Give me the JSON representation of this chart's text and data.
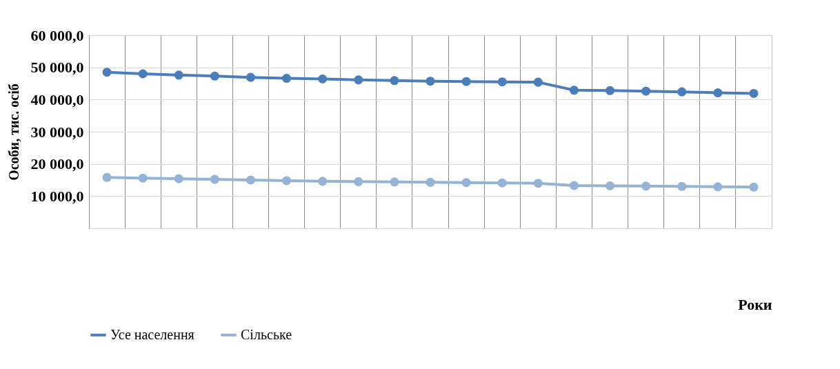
{
  "chart_data": {
    "type": "line",
    "xlabel": "Роки",
    "ylabel": "Особи, тис. осіб",
    "categories": [
      null,
      null,
      null,
      null,
      null,
      null,
      null,
      null,
      null,
      null,
      null,
      null,
      null,
      null,
      null,
      null,
      null,
      null,
      null
    ],
    "series": [
      {
        "name": "Усе населення",
        "color": "#4a7ebb",
        "values": [
          48500,
          48000,
          47600,
          47300,
          46900,
          46600,
          46400,
          46100,
          45900,
          45700,
          45600,
          45500,
          45400,
          42900,
          42800,
          42600,
          42400,
          42100,
          41900
        ]
      },
      {
        "name": "Сільське",
        "color": "#95b3d7",
        "values": [
          15800,
          15600,
          15400,
          15200,
          15000,
          14800,
          14600,
          14500,
          14400,
          14300,
          14200,
          14100,
          14000,
          13300,
          13200,
          13100,
          13000,
          12900,
          12800
        ]
      }
    ],
    "ylim": [
      0,
      60000
    ],
    "yticks": [
      {
        "value": 0,
        "label": null
      },
      {
        "value": 10000,
        "label": "10 000,0"
      },
      {
        "value": 20000,
        "label": "20 000,0"
      },
      {
        "value": 30000,
        "label": "30 000,0"
      },
      {
        "value": 40000,
        "label": "40 000,0"
      },
      {
        "value": 50000,
        "label": "50 000,0"
      },
      {
        "value": 60000,
        "label": "60 000,0"
      }
    ],
    "grid": true,
    "legend": "bottom",
    "marker": "circle",
    "line_style": "solid",
    "tick_labels": "y"
  }
}
